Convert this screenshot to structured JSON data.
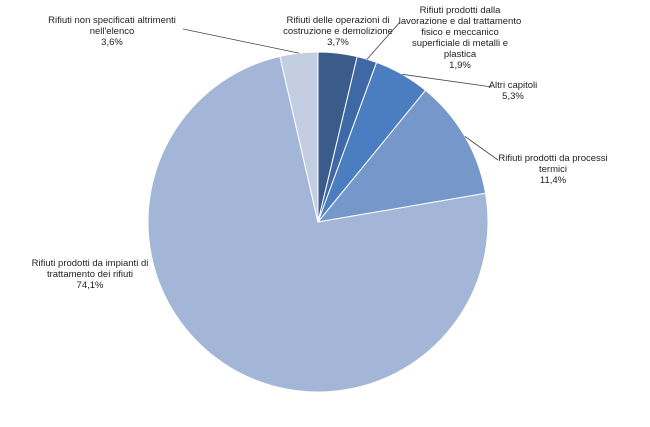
{
  "chart_data": {
    "type": "pie",
    "categories": [
      "Rifiuti delle operazioni di costruzione e demolizione",
      "Rifiuti prodotti dalla lavorazione e dal trattamento fisico e meccanico superficiale di metalli e plastica",
      "Altri capitoli",
      "Rifiuti prodotti da processi termici",
      "Rifiuti prodotti da impianti di trattamento dei rifiuti",
      "Rifiuti non specificati altrimenti nell'elenco"
    ],
    "values": [
      3.7,
      1.9,
      5.3,
      11.4,
      74.1,
      3.6
    ],
    "value_labels": [
      "3,7%",
      "1,9%",
      "5,3%",
      "11,4%",
      "74,1%",
      "3,6%"
    ],
    "colors": [
      "#3b5b8b",
      "#3e68a6",
      "#4b7ec0",
      "#7597c9",
      "#a4b6d7",
      "#c4cee3"
    ]
  }
}
